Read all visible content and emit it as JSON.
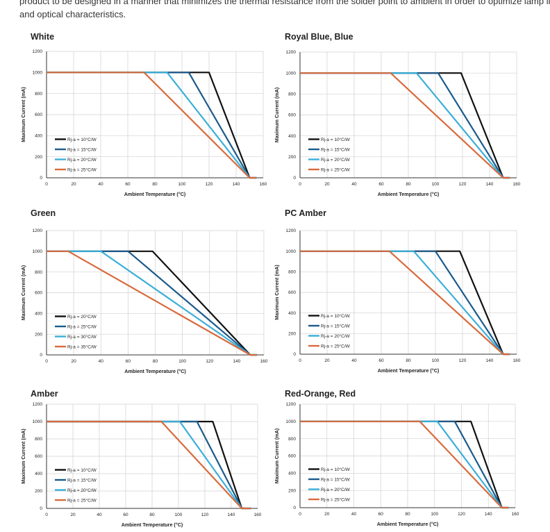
{
  "intro": {
    "line1": "product to be designed in a manner that minimizes the thermal resistance from the solder point to ambient in order to optimize lamp life",
    "line2": "and optical characteristics."
  },
  "colors": {
    "black": "#111111",
    "navy": "#1a5a8c",
    "cyan": "#3aafd8",
    "orange": "#d86a3c"
  },
  "chart_data": [
    {
      "type": "line",
      "title": "White",
      "xlabel": "Ambient Temperature (°C)",
      "ylabel": "Maximum Current (mA)",
      "xlim": [
        0,
        160
      ],
      "ylim": [
        0,
        1200
      ],
      "xticks": [
        "0",
        "20",
        "40",
        "60",
        "80",
        "100",
        "120",
        "140",
        "160"
      ],
      "yticks": [
        "0",
        "200",
        "400",
        "600",
        "800",
        "1000",
        "1200"
      ],
      "legend_position": "bottom-left",
      "grid": true,
      "series": [
        {
          "name": "Rj-a = 10°C/W",
          "color": "#111111",
          "points": [
            [
              0,
              1000
            ],
            [
              120,
              1000
            ],
            [
              150,
              0
            ],
            [
              155,
              0
            ]
          ]
        },
        {
          "name": "Rj-a = 15°C/W",
          "color": "#1a5a8c",
          "points": [
            [
              0,
              1000
            ],
            [
              105,
              1000
            ],
            [
              150,
              0
            ],
            [
              155,
              0
            ]
          ]
        },
        {
          "name": "Rj-a = 20°C/W",
          "color": "#3aafd8",
          "points": [
            [
              0,
              1000
            ],
            [
              89,
              1000
            ],
            [
              150,
              0
            ],
            [
              155,
              0
            ]
          ]
        },
        {
          "name": "Rj-a = 25°C/W",
          "color": "#d86a3c",
          "points": [
            [
              0,
              1000
            ],
            [
              72,
              1000
            ],
            [
              150,
              0
            ],
            [
              155,
              0
            ]
          ]
        }
      ]
    },
    {
      "type": "line",
      "title": "Royal Blue, Blue",
      "xlabel": "Ambient Temperature (°C)",
      "ylabel": "Maximum Current (mA)",
      "xlim": [
        0,
        160
      ],
      "ylim": [
        0,
        1200
      ],
      "xticks": [
        "0",
        "20",
        "40",
        "60",
        "80",
        "100",
        "120",
        "140",
        "160"
      ],
      "yticks": [
        "0",
        "200",
        "400",
        "600",
        "800",
        "1000",
        "1200"
      ],
      "legend_position": "bottom-left",
      "grid": true,
      "series": [
        {
          "name": "Rj-a = 10°C/W",
          "color": "#111111",
          "points": [
            [
              0,
              1000
            ],
            [
              119,
              1000
            ],
            [
              150,
              0
            ],
            [
              155,
              0
            ]
          ]
        },
        {
          "name": "Rj-a = 15°C/W",
          "color": "#1a5a8c",
          "points": [
            [
              0,
              1000
            ],
            [
              102,
              1000
            ],
            [
              150,
              0
            ],
            [
              155,
              0
            ]
          ]
        },
        {
          "name": "Rj-a = 20°C/W",
          "color": "#3aafd8",
          "points": [
            [
              0,
              1000
            ],
            [
              86,
              1000
            ],
            [
              150,
              0
            ],
            [
              155,
              0
            ]
          ]
        },
        {
          "name": "Rj-a = 25°C/W",
          "color": "#d86a3c",
          "points": [
            [
              0,
              1000
            ],
            [
              67,
              1000
            ],
            [
              150,
              0
            ],
            [
              155,
              0
            ]
          ]
        }
      ]
    },
    {
      "type": "line",
      "title": "Green",
      "xlabel": "Ambient Temperature (°C)",
      "ylabel": "Maximum Current (mA)",
      "xlim": [
        0,
        160
      ],
      "ylim": [
        0,
        1200
      ],
      "xticks": [
        "0",
        "20",
        "40",
        "60",
        "80",
        "100",
        "120",
        "140",
        "160"
      ],
      "yticks": [
        "0",
        "200",
        "400",
        "600",
        "800",
        "1000",
        "1200"
      ],
      "legend_position": "bottom-left",
      "grid": true,
      "series": [
        {
          "name": "Rj-a = 20°C/W",
          "color": "#111111",
          "points": [
            [
              0,
              1000
            ],
            [
              78,
              1000
            ],
            [
              150,
              0
            ],
            [
              155,
              0
            ]
          ]
        },
        {
          "name": "Rj-a = 25°C/W",
          "color": "#1a5a8c",
          "points": [
            [
              0,
              1000
            ],
            [
              60,
              1000
            ],
            [
              150,
              0
            ],
            [
              155,
              0
            ]
          ]
        },
        {
          "name": "Rj-a = 30°C/W",
          "color": "#3aafd8",
          "points": [
            [
              0,
              1000
            ],
            [
              40,
              1000
            ],
            [
              150,
              0
            ],
            [
              155,
              0
            ]
          ]
        },
        {
          "name": "Rj-a = 35°C/W",
          "color": "#d86a3c",
          "points": [
            [
              0,
              1000
            ],
            [
              16,
              1000
            ],
            [
              150,
              0
            ],
            [
              155,
              0
            ]
          ]
        }
      ]
    },
    {
      "type": "line",
      "title": "PC Amber",
      "xlabel": "Ambient Temperature (°C)",
      "ylabel": "Maximum Current (mA)",
      "xlim": [
        0,
        160
      ],
      "ylim": [
        0,
        1200
      ],
      "xticks": [
        "0",
        "20",
        "40",
        "60",
        "80",
        "100",
        "120",
        "140",
        "160"
      ],
      "yticks": [
        "0",
        "200",
        "400",
        "600",
        "800",
        "1000",
        "1200"
      ],
      "legend_position": "bottom-left",
      "grid": true,
      "series": [
        {
          "name": "Rj-a = 10°C/W",
          "color": "#111111",
          "points": [
            [
              0,
              1000
            ],
            [
              118,
              1000
            ],
            [
              150,
              0
            ],
            [
              155,
              0
            ]
          ]
        },
        {
          "name": "Rj-a = 15°C/W",
          "color": "#1a5a8c",
          "points": [
            [
              0,
              1000
            ],
            [
              100,
              1000
            ],
            [
              150,
              0
            ],
            [
              155,
              0
            ]
          ]
        },
        {
          "name": "Rj-a = 20°C/W",
          "color": "#3aafd8",
          "points": [
            [
              0,
              1000
            ],
            [
              84,
              1000
            ],
            [
              150,
              0
            ],
            [
              155,
              0
            ]
          ]
        },
        {
          "name": "Rj-a = 25°C/W",
          "color": "#d86a3c",
          "points": [
            [
              0,
              1000
            ],
            [
              66,
              1000
            ],
            [
              150,
              0
            ],
            [
              155,
              0
            ]
          ]
        }
      ]
    },
    {
      "type": "line",
      "title": "Amber",
      "xlabel": "Ambient Temperature (°C)",
      "ylabel": "Maximum Current (mA)",
      "xlim": [
        0,
        160
      ],
      "ylim": [
        0,
        1200
      ],
      "xticks": [
        "0",
        "20",
        "40",
        "60",
        "80",
        "100",
        "120",
        "140",
        "160"
      ],
      "yticks": [
        "0",
        "200",
        "400",
        "600",
        "800",
        "1000",
        "1200"
      ],
      "legend_position": "bottom-left",
      "grid": true,
      "series": [
        {
          "name": "Rj-a = 10°C/W",
          "color": "#111111",
          "points": [
            [
              0,
              1000
            ],
            [
              126,
              1000
            ],
            [
              148,
              0
            ],
            [
              155,
              0
            ]
          ]
        },
        {
          "name": "Rj-a = 15°C/W",
          "color": "#1a5a8c",
          "points": [
            [
              0,
              1000
            ],
            [
              114,
              1000
            ],
            [
              148,
              0
            ],
            [
              155,
              0
            ]
          ]
        },
        {
          "name": "Rj-a = 20°C/W",
          "color": "#3aafd8",
          "points": [
            [
              0,
              1000
            ],
            [
              101,
              1000
            ],
            [
              148,
              0
            ],
            [
              155,
              0
            ]
          ]
        },
        {
          "name": "Rj-a = 25°C/W",
          "color": "#d86a3c",
          "points": [
            [
              0,
              1000
            ],
            [
              87,
              1000
            ],
            [
              148,
              0
            ],
            [
              155,
              0
            ]
          ]
        }
      ]
    },
    {
      "type": "line",
      "title": "Red-Orange, Red",
      "xlabel": "Ambient Temperature (°C)",
      "ylabel": "Maximum Current (mA)",
      "xlim": [
        0,
        160
      ],
      "ylim": [
        0,
        1200
      ],
      "xticks": [
        "0",
        "20",
        "40",
        "60",
        "80",
        "100",
        "120",
        "140",
        "160"
      ],
      "yticks": [
        "0",
        "200",
        "400",
        "600",
        "800",
        "1000",
        "1200"
      ],
      "legend_position": "bottom-left",
      "grid": true,
      "series": [
        {
          "name": "Rj-a = 10°C/W",
          "color": "#111111",
          "points": [
            [
              0,
              1000
            ],
            [
              127,
              1000
            ],
            [
              150,
              0
            ],
            [
              155,
              0
            ]
          ]
        },
        {
          "name": "Rj-a = 15°C/W",
          "color": "#1a5a8c",
          "points": [
            [
              0,
              1000
            ],
            [
              115,
              1000
            ],
            [
              150,
              0
            ],
            [
              155,
              0
            ]
          ]
        },
        {
          "name": "Rj-a = 20°C/W",
          "color": "#3aafd8",
          "points": [
            [
              0,
              1000
            ],
            [
              102,
              1000
            ],
            [
              150,
              0
            ],
            [
              155,
              0
            ]
          ]
        },
        {
          "name": "Rj-a = 25°C/W",
          "color": "#d86a3c",
          "points": [
            [
              0,
              1000
            ],
            [
              89,
              1000
            ],
            [
              150,
              0
            ],
            [
              155,
              0
            ]
          ]
        }
      ]
    }
  ]
}
